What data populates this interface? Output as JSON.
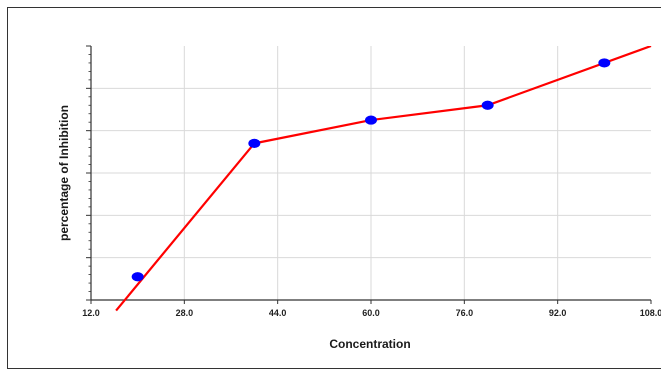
{
  "chart_data": {
    "type": "line",
    "title": "",
    "xlabel": "Concentration",
    "ylabel": "percentage of Inhibition",
    "xlim": [
      12.0,
      108.0
    ],
    "x_ticks": [
      "12.0",
      "28.0",
      "44.0",
      "60.0",
      "76.0",
      "92.0",
      "108.0"
    ],
    "y_ticks": [],
    "grid": true,
    "legend": "none",
    "series": [
      {
        "x": [
          20,
          40,
          60,
          80,
          100
        ],
        "y": [
          0.11,
          0.74,
          0.85,
          0.92,
          1.12
        ],
        "line_color": "#ff0000",
        "marker_color": "#0000ff"
      }
    ],
    "fit_line": {
      "x": [
        16.3,
        40,
        60,
        80,
        108
      ],
      "y": [
        -0.05,
        0.74,
        0.85,
        0.92,
        1.2
      ]
    }
  }
}
